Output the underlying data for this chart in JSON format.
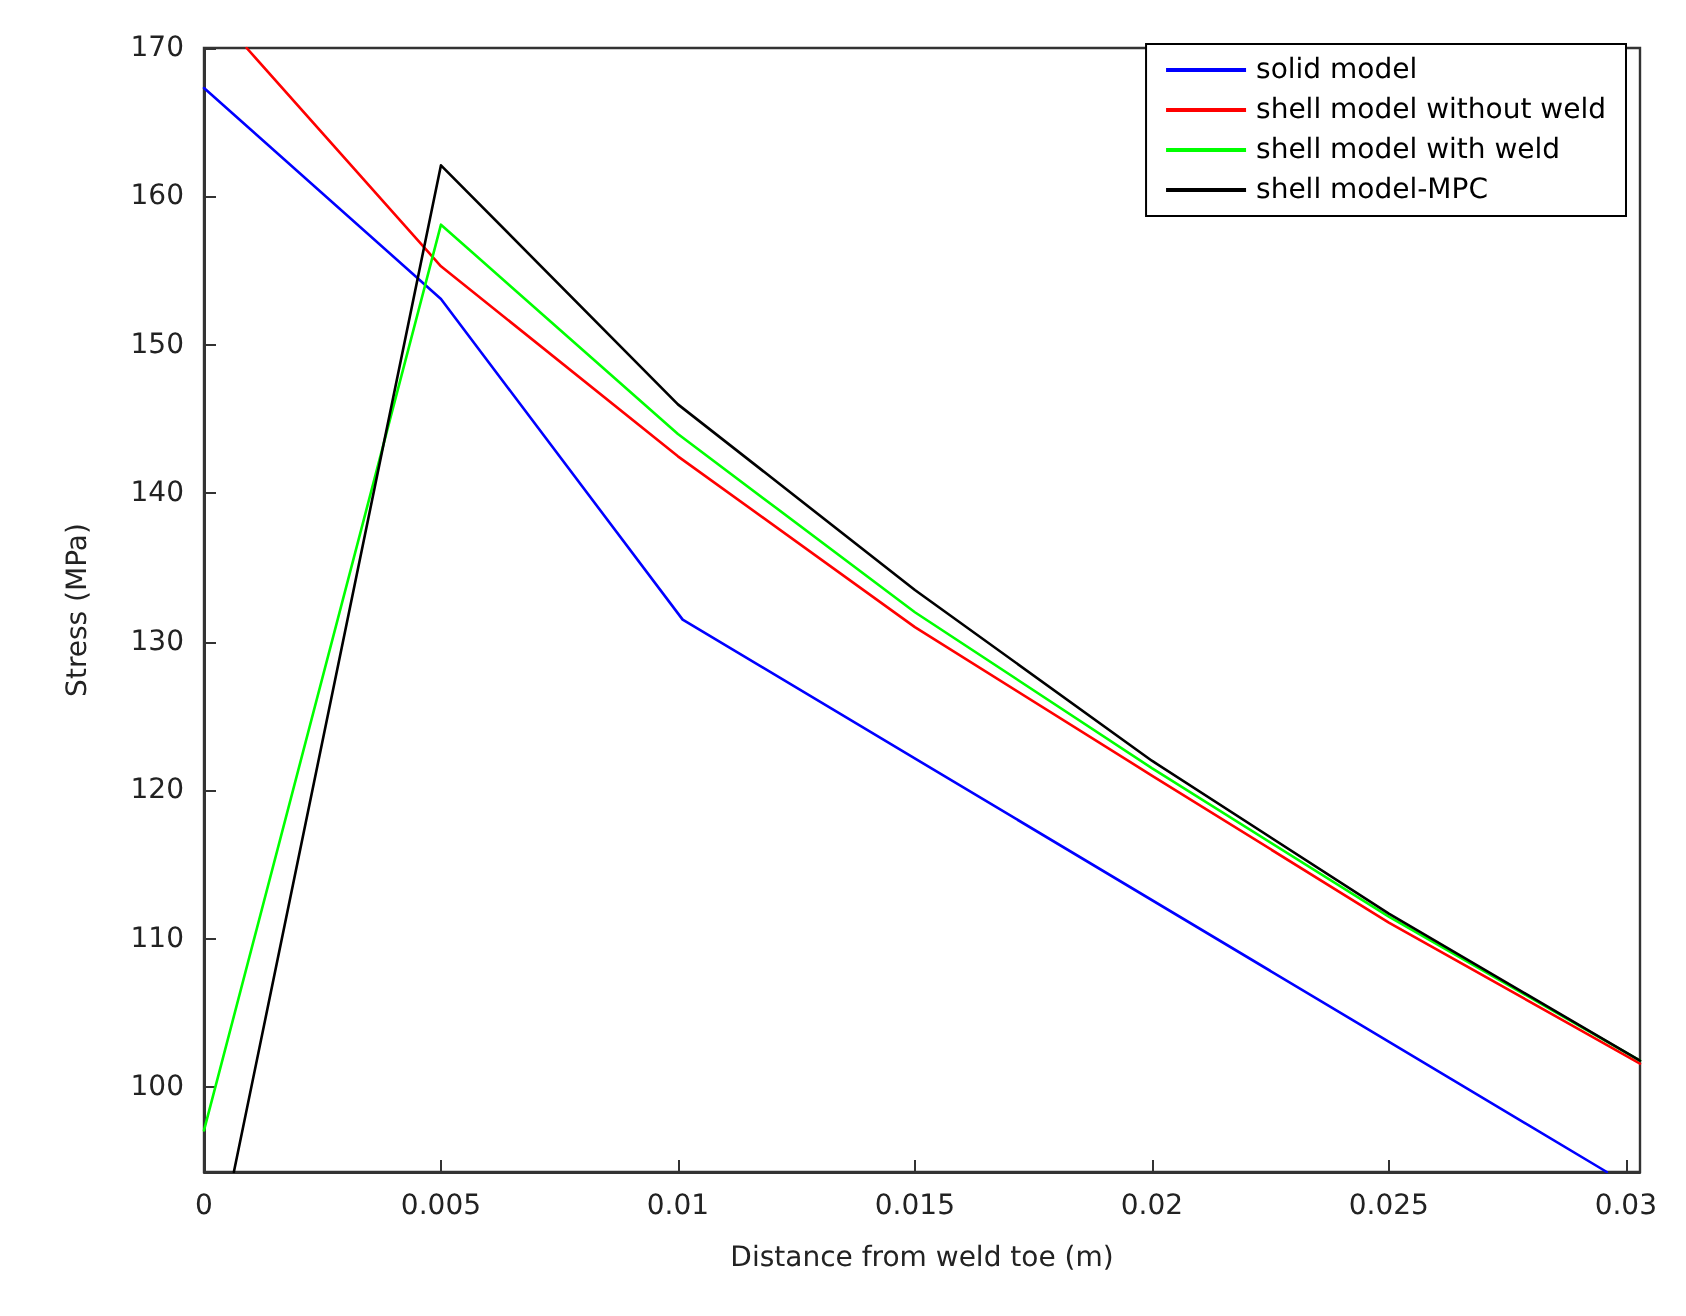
{
  "chart_data": {
    "type": "line",
    "xlabel": "Distance from weld toe (m)",
    "ylabel": "Stress (MPa)",
    "xlim": [
      0,
      0.0303
    ],
    "ylim": [
      94.3,
      170
    ],
    "xticks": [
      0,
      0.005,
      0.01,
      0.015,
      0.02,
      0.025,
      0.03
    ],
    "yticks": [
      100,
      110,
      120,
      130,
      140,
      150,
      160,
      170
    ],
    "grid": false,
    "legend": "top right",
    "marker": "none",
    "line_style": "solid",
    "series": [
      {
        "name": "solid model",
        "color": "#0000ff",
        "x": [
          0,
          0.005,
          0.0101,
          0.0296
        ],
        "values": [
          167.3,
          153.1,
          131.5,
          94.3
        ]
      },
      {
        "name": "shell model without weld",
        "color": "#ff0000",
        "x": [
          0.0009,
          0.005,
          0.01,
          0.015,
          0.02,
          0.025,
          0.0303
        ],
        "values": [
          170,
          155.3,
          142.5,
          131,
          121,
          111.1,
          101.6
        ]
      },
      {
        "name": "shell model with weld",
        "color": "#00ff00",
        "x": [
          0,
          0.005,
          0.01,
          0.015,
          0.02,
          0.025,
          0.0303
        ],
        "values": [
          97.1,
          158.1,
          144,
          132,
          121.5,
          111.5,
          101.8
        ]
      },
      {
        "name": "shell model-MPC",
        "color": "#000000",
        "x": [
          0.00063,
          0.005,
          0.01,
          0.015,
          0.02,
          0.025,
          0.0303
        ],
        "values": [
          94.3,
          162.1,
          146,
          133.5,
          122,
          111.7,
          101.8
        ]
      }
    ]
  }
}
